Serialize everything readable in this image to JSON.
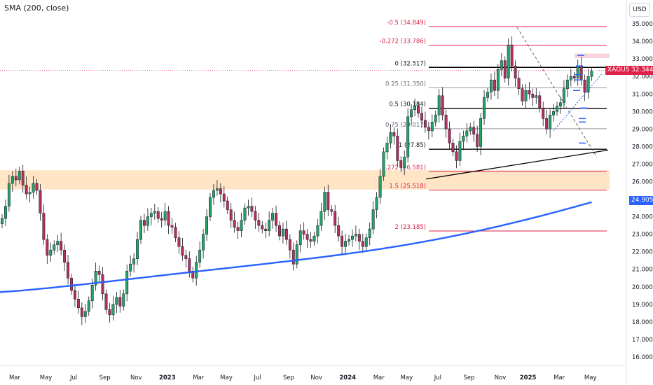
{
  "indicator_label": "SMA (200, close)",
  "currency": "USD",
  "colors": {
    "up": "#26a269",
    "down": "#b3305f",
    "sma": "#2962ff",
    "fib_red": "#e0224a",
    "fib_black": "#000000",
    "zone": "#ffdcb3",
    "resistance_zone": "#f8c8d0",
    "tag_red": "#e0224a",
    "tag_blue": "#2962ff"
  },
  "chart_data": {
    "type": "candlestick",
    "symbol": "XAGUSD",
    "last_price": "32.344",
    "sma_value": "24.905",
    "ylim": [
      15.6,
      36.2
    ],
    "y_ticks": [
      "16.000",
      "17.000",
      "18.000",
      "19.000",
      "20.000",
      "21.000",
      "22.000",
      "23.000",
      "24.000",
      "25.000",
      "26.000",
      "27.000",
      "28.000",
      "29.000",
      "30.000",
      "31.000",
      "32.000",
      "33.000",
      "34.000",
      "35.000"
    ],
    "x_ticks": [
      {
        "label": "Mar",
        "week": 0
      },
      {
        "label": "May",
        "week": 9
      },
      {
        "label": "Jul",
        "week": 17
      },
      {
        "label": "Sep",
        "week": 26
      },
      {
        "label": "Nov",
        "week": 35
      },
      {
        "label": "2023",
        "week": 44
      },
      {
        "label": "Mar",
        "week": 53
      },
      {
        "label": "May",
        "week": 61
      },
      {
        "label": "Jul",
        "week": 70
      },
      {
        "label": "Sep",
        "week": 79
      },
      {
        "label": "Nov",
        "week": 87
      },
      {
        "label": "2024",
        "week": 96
      },
      {
        "label": "Mar",
        "week": 105
      },
      {
        "label": "May",
        "week": 113
      },
      {
        "label": "Jul",
        "week": 122
      },
      {
        "label": "Sep",
        "week": 131
      },
      {
        "label": "Nov",
        "week": 140
      },
      {
        "label": "2025",
        "week": 148
      },
      {
        "label": "Mar",
        "week": 157
      },
      {
        "label": "May",
        "week": 166
      }
    ],
    "fib_levels": [
      {
        "label": "-0.5 (34.849)",
        "value": 34.849,
        "color": "red"
      },
      {
        "label": "-0.272 (33.786)",
        "value": 33.786,
        "color": "red"
      },
      {
        "label": "0 (32.517)",
        "value": 32.517,
        "color": "black"
      },
      {
        "label": "0.25 (31.350)",
        "value": 31.35,
        "color": "gray"
      },
      {
        "label": "0.5 (30.184)",
        "value": 30.184,
        "color": "black"
      },
      {
        "label": "0.75 (29.017)",
        "value": 29.017,
        "color": "gray"
      },
      {
        "label": "1 (27.85)",
        "value": 27.85,
        "color": "black"
      },
      {
        "label": "1.272 (26.581)",
        "value": 26.581,
        "color": "red"
      },
      {
        "label": "1.5 (25.518)",
        "value": 25.518,
        "color": "red"
      },
      {
        "label": "2 (23.185)",
        "value": 23.185,
        "color": "red"
      }
    ],
    "zone": [
      25.55,
      26.65
    ],
    "resistance_zone": [
      33.05,
      33.3
    ],
    "closes": [
      23.9,
      24.6,
      25.9,
      26.3,
      26.1,
      26.6,
      25.8,
      25.3,
      25.4,
      25.9,
      25.5,
      24.2,
      22.7,
      21.8,
      22.1,
      22.4,
      22.6,
      22.1,
      21.4,
      20.5,
      19.8,
      19.3,
      18.8,
      18.3,
      18.6,
      19.2,
      20.1,
      20.9,
      20.7,
      19.6,
      18.7,
      18.4,
      19.0,
      19.4,
      18.9,
      19.6,
      20.9,
      21.3,
      21.6,
      22.7,
      23.8,
      23.5,
      24.0,
      24.2,
      24.3,
      23.9,
      23.8,
      24.3,
      23.5,
      23.4,
      22.8,
      22.3,
      21.8,
      21.6,
      20.9,
      20.5,
      21.4,
      22.1,
      23.0,
      24.0,
      25.1,
      25.5,
      25.6,
      25.3,
      24.9,
      24.4,
      23.8,
      23.4,
      23.2,
      23.8,
      24.5,
      24.6,
      24.3,
      23.8,
      23.5,
      23.3,
      23.2,
      23.8,
      24.2,
      23.5,
      22.9,
      23.3,
      22.7,
      22.1,
      21.3,
      22.4,
      23.2,
      23.0,
      22.7,
      22.6,
      22.9,
      23.5,
      24.3,
      25.4,
      24.4,
      24.3,
      23.5,
      22.9,
      22.3,
      22.6,
      22.7,
      22.9,
      23.0,
      22.6,
      22.3,
      22.8,
      23.3,
      24.4,
      25.1,
      26.3,
      27.7,
      28.2,
      28.8,
      28.6,
      27.2,
      26.8,
      27.4,
      29.7,
      30.1,
      30.3,
      29.9,
      29.5,
      29.1,
      28.9,
      29.4,
      29.8,
      30.9,
      29.8,
      29.0,
      28.2,
      27.7,
      27.2,
      28.3,
      28.6,
      28.9,
      29.1,
      28.7,
      28.0,
      29.6,
      30.8,
      31.1,
      31.8,
      31.2,
      32.4,
      32.9,
      31.9,
      33.8,
      32.6,
      31.9,
      31.3,
      30.6,
      31.2,
      31.0,
      30.8,
      30.9,
      30.2,
      29.6,
      29.0,
      29.8,
      30.0,
      30.3,
      30.5,
      31.3,
      31.8,
      32.0,
      31.9,
      32.6,
      31.8,
      31.1,
      32.0,
      32.3
    ]
  }
}
